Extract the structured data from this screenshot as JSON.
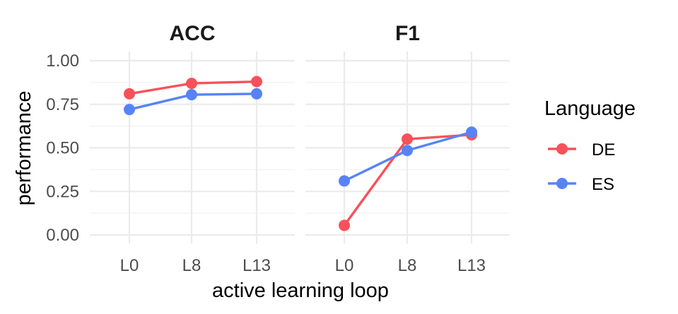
{
  "chart_data": {
    "type": "line",
    "xlabel": "active learning loop",
    "ylabel": "performance",
    "x": [
      "L0",
      "L8",
      "L13"
    ],
    "ylim": [
      0,
      1
    ],
    "yticks": [
      "0.00",
      "0.25",
      "0.50",
      "0.75",
      "1.00"
    ],
    "grid": true,
    "legend": {
      "title": "Language",
      "placement": "right",
      "entries": [
        {
          "name": "DE",
          "color": "#F8515A"
        },
        {
          "name": "ES",
          "color": "#5783F7"
        }
      ]
    },
    "facets": [
      {
        "title": "ACC",
        "series": [
          {
            "name": "DE",
            "values": [
              0.81,
              0.87,
              0.88
            ]
          },
          {
            "name": "ES",
            "values": [
              0.72,
              0.805,
              0.81
            ]
          }
        ]
      },
      {
        "title": "F1",
        "series": [
          {
            "name": "DE",
            "values": [
              0.055,
              0.55,
              0.575
            ]
          },
          {
            "name": "ES",
            "values": [
              0.31,
              0.485,
              0.59
            ]
          }
        ]
      }
    ]
  }
}
